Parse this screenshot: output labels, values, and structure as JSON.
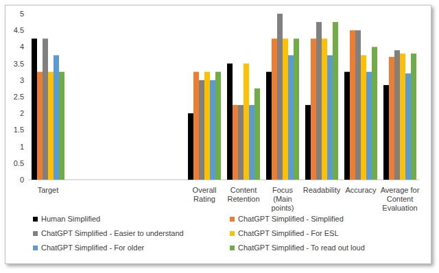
{
  "chart_data": {
    "type": "bar",
    "categories": [
      "Target",
      null,
      null,
      null,
      "Overall Rating",
      "Content Retention",
      "Focus (Main points)",
      "Readability",
      "Accuracy",
      "Average for Content Evaluation"
    ],
    "series": [
      {
        "name": "Human Simplified",
        "color": "#000000",
        "values": [
          4.25,
          null,
          null,
          null,
          2,
          3.5,
          3.25,
          2.25,
          3.25,
          2.85
        ]
      },
      {
        "name": "ChatGPT Simplified - Simplified",
        "color": "#ed7d31",
        "values": [
          3.25,
          null,
          null,
          null,
          3.25,
          2.25,
          4.25,
          4.25,
          4.5,
          3.7
        ]
      },
      {
        "name": "ChatGPT Simplified - Easier to understand",
        "color": "#808080",
        "values": [
          4.25,
          null,
          null,
          null,
          3,
          2.25,
          5,
          4.75,
          4.5,
          3.9
        ]
      },
      {
        "name": "ChatGPT Simplified - For ESL",
        "color": "#ffc000",
        "values": [
          3.25,
          null,
          null,
          null,
          3.25,
          3.5,
          4.25,
          4.25,
          3.75,
          3.8
        ]
      },
      {
        "name": "ChatGPT Simplified - For older",
        "color": "#5b9bd5",
        "values": [
          3.75,
          null,
          null,
          null,
          3,
          2.25,
          3.75,
          3.75,
          3.25,
          3.2
        ]
      },
      {
        "name": "ChatGPT Simplified - To read out loud",
        "color": "#70ad47",
        "values": [
          3.25,
          null,
          null,
          null,
          3.25,
          2.75,
          4.25,
          4.75,
          4,
          3.8
        ]
      }
    ],
    "ylim": [
      0,
      5
    ],
    "yticks": [
      0,
      0.5,
      1,
      1.5,
      2,
      2.5,
      3,
      3.5,
      4,
      4.5,
      5
    ],
    "grid": false,
    "legend": "bottom"
  }
}
